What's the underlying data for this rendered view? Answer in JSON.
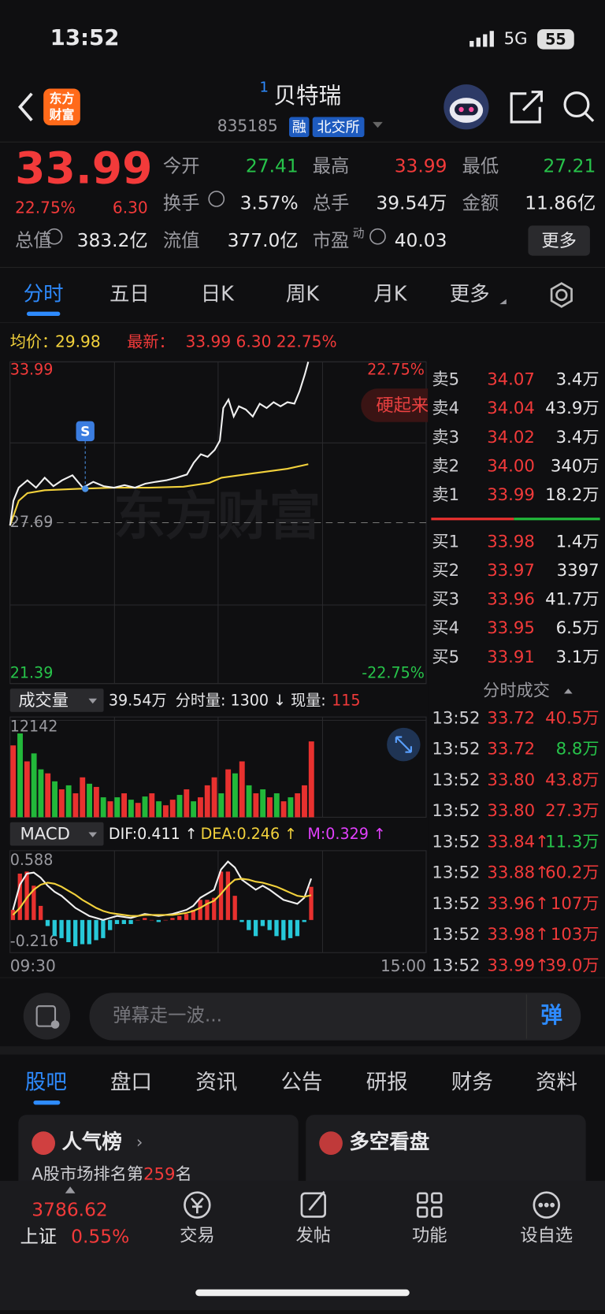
{
  "status": {
    "time": "13:52",
    "network": "5G",
    "battery": "55"
  },
  "header": {
    "logo": [
      "东方",
      "财富"
    ],
    "index": "1",
    "title": "贝特瑞",
    "code": "835185",
    "tags": [
      "融",
      "北交所"
    ]
  },
  "quote": {
    "price": "33.99",
    "pct": "22.75%",
    "change": "6.30",
    "fields": [
      {
        "label": "今开",
        "value": "27.41",
        "color": "#27c34a"
      },
      {
        "label": "最高",
        "value": "33.99",
        "color": "#f23a3a"
      },
      {
        "label": "最低",
        "value": "27.21",
        "color": "#27c34a"
      },
      {
        "label": "换手",
        "value": "3.57%",
        "color": "#e8e8ea"
      },
      {
        "label": "总手",
        "value": "39.54万",
        "color": "#e8e8ea"
      },
      {
        "label": "金额",
        "value": "11.86亿",
        "color": "#e8e8ea"
      },
      {
        "label": "总值",
        "value": "383.2亿",
        "color": "#e8e8ea"
      },
      {
        "label": "流值",
        "value": "377.0亿",
        "color": "#e8e8ea"
      },
      {
        "label": "市盈",
        "value": "40.03",
        "color": "#e8e8ea"
      }
    ],
    "pe_mark": "动",
    "more": "更多"
  },
  "tabs": [
    "分时",
    "五日",
    "日K",
    "周K",
    "月K",
    "更多"
  ],
  "chart_data": [
    {
      "type": "line",
      "watermark": "东方财富",
      "marker_label": "S",
      "button": "硬起来",
      "xlim": [
        0,
        240
      ],
      "xticks": [
        {
          "value": 0,
          "label": "09:30"
        },
        {
          "value": 240,
          "label": "15:00"
        }
      ],
      "ylim": [
        21.39,
        33.99
      ],
      "yticks": [
        33.99,
        27.69,
        21.39
      ],
      "y2lim": [
        -22.75,
        22.75
      ],
      "y2ticks": [
        {
          "value": 22.75,
          "label": "22.75%"
        },
        {
          "value": -22.75,
          "label": "-22.75%"
        }
      ],
      "series": [
        {
          "name": "均价：",
          "legend_value": "29.98",
          "color": "#f2d13c",
          "x": [
            0,
            5,
            10,
            20,
            40,
            60,
            80,
            100,
            115,
            122,
            140,
            160,
            172
          ],
          "values": [
            27.58,
            28.55,
            28.85,
            28.96,
            29.02,
            29.06,
            29.06,
            29.1,
            29.25,
            29.45,
            29.62,
            29.8,
            29.98
          ]
        },
        {
          "name": "最新：",
          "legend_value": "33.99 6.30 22.75%",
          "color": "#f0f0f0",
          "x": [
            0,
            2,
            5,
            10,
            15,
            20,
            25,
            30,
            36,
            42,
            48,
            54,
            60,
            66,
            72,
            78,
            84,
            90,
            96,
            102,
            106,
            110,
            114,
            118,
            121,
            123,
            126,
            129,
            132,
            136,
            140,
            144,
            148,
            152,
            156,
            160,
            164,
            167,
            170,
            172
          ],
          "values": [
            27.58,
            28.55,
            29.06,
            29.35,
            29.06,
            29.45,
            29.12,
            29.35,
            29.55,
            29.06,
            29.29,
            29.12,
            29.06,
            29.16,
            29.06,
            29.22,
            29.29,
            29.35,
            29.45,
            29.58,
            30.04,
            30.37,
            30.27,
            30.54,
            30.9,
            32.18,
            32.51,
            31.85,
            32.25,
            32.12,
            31.85,
            32.35,
            32.18,
            32.41,
            32.25,
            32.41,
            32.35,
            32.84,
            33.5,
            33.99
          ]
        }
      ]
    },
    {
      "type": "bar",
      "title": "成交量",
      "info": [
        "39.54万",
        "分时量: 1300 ↓",
        "现量:",
        "115"
      ],
      "ylim": [
        0,
        12142
      ],
      "yticks": [
        12142
      ],
      "x": [
        0,
        4,
        8,
        12,
        16,
        20,
        24,
        28,
        32,
        36,
        40,
        44,
        48,
        52,
        56,
        60,
        64,
        68,
        72,
        76,
        80,
        84,
        88,
        92,
        96,
        100,
        104,
        108,
        112,
        116,
        120,
        124,
        128,
        132,
        136,
        140,
        144,
        148,
        152,
        156,
        160,
        164,
        168,
        172
      ],
      "values": [
        9000,
        10500,
        7000,
        8000,
        6000,
        5500,
        4500,
        3500,
        4000,
        3000,
        5000,
        4200,
        3800,
        2500,
        2000,
        2500,
        3000,
        2200,
        1800,
        2600,
        3000,
        2000,
        1500,
        2200,
        2800,
        3500,
        2000,
        2500,
        4000,
        5000,
        3000,
        6000,
        5500,
        7000,
        4000,
        3000,
        3500,
        2500,
        3000,
        2000,
        2500,
        3000,
        4000,
        9500
      ],
      "bar_colors": [
        "#e8312f",
        "#22b83a",
        "#e8312f",
        "#22b83a",
        "#22b83a",
        "#e8312f",
        "#22b83a",
        "#e8312f",
        "#22b83a",
        "#e8312f",
        "#e8312f",
        "#22b83a",
        "#e8312f",
        "#22b83a",
        "#e8312f",
        "#22b83a",
        "#e8312f",
        "#22b83a",
        "#e8312f",
        "#22b83a",
        "#e8312f",
        "#22b83a",
        "#e8312f",
        "#e8312f",
        "#22b83a",
        "#e8312f",
        "#22b83a",
        "#e8312f",
        "#e8312f",
        "#e8312f",
        "#22b83a",
        "#e8312f",
        "#22b83a",
        "#e8312f",
        "#22b83a",
        "#e8312f",
        "#22b83a",
        "#e8312f",
        "#22b83a",
        "#e8312f",
        "#22b83a",
        "#e8312f",
        "#e8312f",
        "#e8312f"
      ]
    },
    {
      "type": "macd",
      "title": "MACD",
      "ylim": [
        -0.216,
        0.588
      ],
      "yticks": [
        0.588,
        -0.216
      ],
      "x": [
        0,
        4,
        8,
        12,
        16,
        20,
        24,
        28,
        32,
        36,
        40,
        44,
        48,
        52,
        56,
        60,
        64,
        68,
        72,
        76,
        80,
        84,
        88,
        92,
        96,
        100,
        104,
        108,
        112,
        116,
        120,
        124,
        128,
        132,
        136,
        140,
        144,
        148,
        152,
        156,
        160,
        164,
        168,
        172
      ],
      "series": [
        {
          "name": "DIF:0.411 ↑",
          "color": "#f0f0f0",
          "values": [
            0.1,
            0.35,
            0.46,
            0.47,
            0.42,
            0.34,
            0.28,
            0.24,
            0.18,
            0.12,
            0.08,
            0.04,
            0.02,
            0.0,
            0.02,
            0.04,
            0.03,
            0.02,
            0.04,
            0.06,
            0.05,
            0.04,
            0.05,
            0.06,
            0.08,
            0.1,
            0.14,
            0.22,
            0.26,
            0.3,
            0.5,
            0.58,
            0.52,
            0.4,
            0.35,
            0.3,
            0.34,
            0.3,
            0.25,
            0.2,
            0.18,
            0.16,
            0.22,
            0.411
          ]
        },
        {
          "name": "DEA:0.246 ↑",
          "color": "#f2d13c",
          "values": [
            0.05,
            0.12,
            0.22,
            0.3,
            0.35,
            0.37,
            0.36,
            0.33,
            0.29,
            0.25,
            0.2,
            0.16,
            0.12,
            0.09,
            0.07,
            0.06,
            0.05,
            0.04,
            0.04,
            0.05,
            0.05,
            0.05,
            0.05,
            0.05,
            0.06,
            0.07,
            0.09,
            0.12,
            0.16,
            0.19,
            0.26,
            0.34,
            0.4,
            0.41,
            0.4,
            0.38,
            0.37,
            0.35,
            0.33,
            0.3,
            0.27,
            0.24,
            0.23,
            0.246
          ]
        },
        {
          "name": "M:0.329 ↑",
          "color": "#e040fb",
          "up_color": "#e8312f",
          "down_color": "#27c8d8",
          "values": [
            0.1,
            0.46,
            0.48,
            0.34,
            0.14,
            -0.06,
            -0.16,
            -0.18,
            -0.22,
            -0.26,
            -0.24,
            -0.24,
            -0.2,
            -0.18,
            -0.1,
            -0.04,
            -0.04,
            -0.04,
            0.0,
            0.02,
            0.0,
            -0.02,
            0.0,
            0.02,
            0.04,
            0.06,
            0.1,
            0.2,
            0.2,
            0.22,
            0.48,
            0.48,
            0.24,
            -0.02,
            -0.1,
            -0.16,
            -0.06,
            -0.1,
            -0.16,
            -0.2,
            -0.18,
            -0.16,
            -0.02,
            0.329
          ]
        }
      ]
    }
  ],
  "order_book": {
    "asks": [
      {
        "label": "卖5",
        "price": "34.07",
        "volume": "3.4万"
      },
      {
        "label": "卖4",
        "price": "34.04",
        "volume": "43.9万"
      },
      {
        "label": "卖3",
        "price": "34.02",
        "volume": "3.4万"
      },
      {
        "label": "卖2",
        "price": "34.00",
        "volume": "340万"
      },
      {
        "label": "卖1",
        "price": "33.99",
        "volume": "18.2万"
      }
    ],
    "bids": [
      {
        "label": "买1",
        "price": "33.98",
        "volume": "1.4万"
      },
      {
        "label": "买2",
        "price": "33.97",
        "volume": "3397"
      },
      {
        "label": "买3",
        "price": "33.96",
        "volume": "41.7万"
      },
      {
        "label": "买4",
        "price": "33.95",
        "volume": "6.5万"
      },
      {
        "label": "买5",
        "price": "33.91",
        "volume": "3.1万"
      }
    ]
  },
  "trades": {
    "title": "分时成交",
    "rows": [
      {
        "time": "13:52",
        "price": "33.72",
        "volume": "40.5万",
        "color": "#f23a3a"
      },
      {
        "time": "13:52",
        "price": "33.72",
        "volume": "8.8万",
        "color": "#27c34a"
      },
      {
        "time": "13:52",
        "price": "33.80",
        "volume": "43.8万",
        "color": "#f23a3a"
      },
      {
        "time": "13:52",
        "price": "33.80",
        "volume": "27.3万",
        "color": "#f23a3a"
      },
      {
        "time": "13:52",
        "price": "33.84↑",
        "volume": "11.3万",
        "color": "#27c34a"
      },
      {
        "time": "13:52",
        "price": "33.88↑",
        "volume": "60.2万",
        "color": "#f23a3a"
      },
      {
        "time": "13:52",
        "price": "33.96↑",
        "volume": "107万",
        "color": "#f23a3a"
      },
      {
        "time": "13:52",
        "price": "33.98↑",
        "volume": "103万",
        "color": "#f23a3a"
      },
      {
        "time": "13:52",
        "price": "33.99↑",
        "volume": "39.0万",
        "color": "#f23a3a"
      }
    ]
  },
  "danmaku": {
    "placeholder": "弹幕走一波...",
    "button": "弹"
  },
  "sections": [
    "股吧",
    "盘口",
    "资讯",
    "公告",
    "研报",
    "财务",
    "资料"
  ],
  "cards": [
    {
      "title": "人气榜",
      "text": [
        "A股市场排名第",
        "259",
        "名"
      ]
    },
    {
      "title": "多空看盘"
    }
  ],
  "index_ticker": {
    "value": "3786.62",
    "name": "上证",
    "pct": "0.55%"
  },
  "nav": [
    "交易",
    "发帖",
    "功能",
    "设自选"
  ]
}
